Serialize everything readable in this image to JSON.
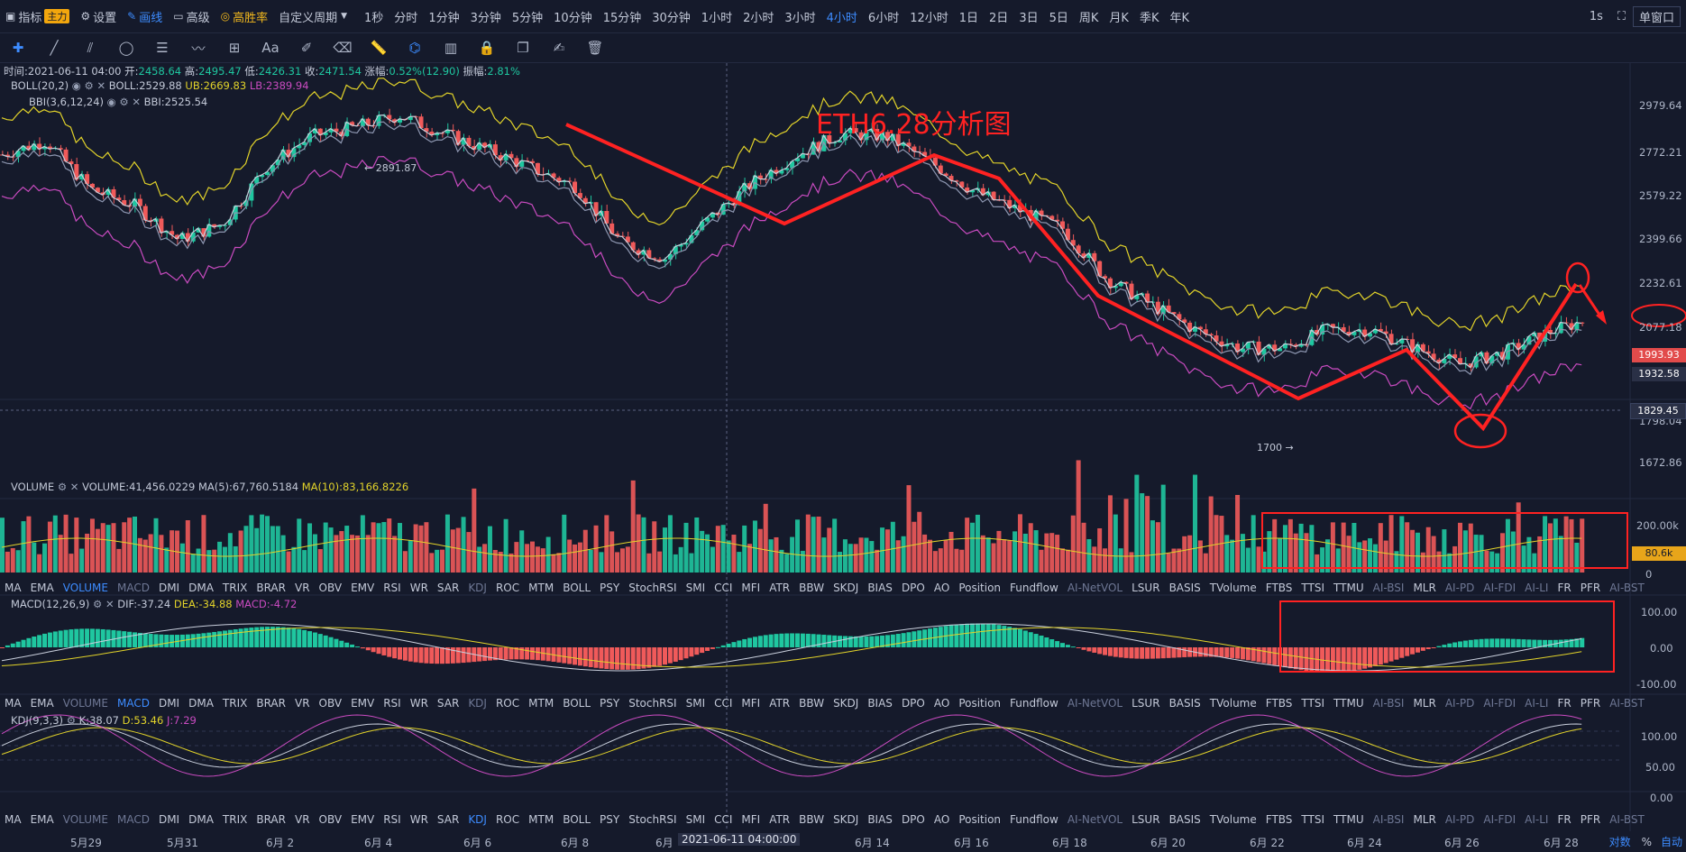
{
  "topbar": {
    "indicators": "指标",
    "main_badge": "主力",
    "settings": "设置",
    "draw": "画线",
    "advanced": "高级",
    "winrate": "高胜率",
    "custom_period": "自定义周期",
    "periods": [
      "1秒",
      "分时",
      "1分钟",
      "3分钟",
      "5分钟",
      "10分钟",
      "15分钟",
      "30分钟",
      "1小时",
      "2小时",
      "3小时",
      "4小时",
      "6小时",
      "12小时",
      "1日",
      "2日",
      "3日",
      "5日",
      "周K",
      "月K",
      "季K",
      "年K"
    ],
    "active_period": "4小时",
    "right_interval": "1s",
    "window_mode": "单窗口"
  },
  "toolbar_icons": [
    "crosshair-icon",
    "line-icon",
    "parallel-icon",
    "circle-icon",
    "fib-icon",
    "wave-icon",
    "measure-icon",
    "text-icon",
    "brush-icon",
    "eraser-icon",
    "ruler-icon",
    "magnet-icon",
    "pattern-icon",
    "lock-icon",
    "copy-icon",
    "edit-icon",
    "trash-icon"
  ],
  "candle_info": {
    "time_label": "时间:2021-06-11 04:00",
    "open_label": "开:",
    "open": "2458.64",
    "high_label": "高:",
    "high": "2495.47",
    "low_label": "低:",
    "low": "2426.31",
    "close_label": "收:",
    "close": "2471.54",
    "change_label": "涨幅:",
    "change": "0.52%(12.90)",
    "amp_label": "振幅:",
    "amp": "2.81%"
  },
  "boll": {
    "name": "BOLL(20,2)",
    "mid": "BOLL:2529.88",
    "ub": "UB:2669.83",
    "lb": "LB:2389.94"
  },
  "bbi": {
    "name": "BBI(3,6,12,24)",
    "value": "BBI:2525.54"
  },
  "annotation_title": "ETH6.28分析图",
  "high_marker": "2891.87",
  "low_marker": "1700",
  "price_axis": [
    "2979.64",
    "2772.21",
    "2579.22",
    "2399.66",
    "2232.61",
    "2077.18",
    "1798.04",
    "1672.86"
  ],
  "price_current": "1993.93",
  "price_circled": "1932.58",
  "price_crosshair": "1829.45",
  "volume": {
    "name": "VOLUME",
    "value": "VOLUME:41,456.0229",
    "ma5": "MA(5):67,760.5184",
    "ma10": "MA(10):83,166.8226",
    "axis": [
      "200.00k",
      "0"
    ],
    "current": "80.6k"
  },
  "indicator_tabs": [
    "MA",
    "EMA",
    "VOLUME",
    "MACD",
    "DMI",
    "DMA",
    "TRIX",
    "BRAR",
    "VR",
    "OBV",
    "EMV",
    "RSI",
    "WR",
    "SAR",
    "KDJ",
    "ROC",
    "MTM",
    "BOLL",
    "PSY",
    "StochRSI",
    "SMI",
    "CCI",
    "MFI",
    "ATR",
    "BBW",
    "SKDJ",
    "BIAS",
    "DPO",
    "AO",
    "Position",
    "Fundflow",
    "AI-NetVOL",
    "LSUR",
    "BASIS",
    "TVolume",
    "FTBS",
    "TTSI",
    "TTMU",
    "AI-BSI",
    "MLR",
    "AI-PD",
    "AI-FDI",
    "AI-LI",
    "FR",
    "PFR",
    "AI-BST"
  ],
  "macd": {
    "name": "MACD(12,26,9)",
    "dif": "DIF:-37.24",
    "dea": "DEA:-34.88",
    "macd": "MACD:-4.72",
    "axis": [
      "100.00",
      "0.00",
      "-100.00"
    ]
  },
  "kdj": {
    "name": "KDJ(9,3,3)",
    "k": "K:38.07",
    "d": "D:53.46",
    "j": "J:7.29",
    "axis": [
      "100.00",
      "50.00",
      "0.00"
    ]
  },
  "dates": [
    "5月29",
    "5月31",
    "6月 2",
    "6月 4",
    "6月 6",
    "6月 8",
    "6月",
    "2021-06-11 04:00:00",
    "6月 14",
    "6月 16",
    "6月 18",
    "6月 20",
    "6月 22",
    "6月 24",
    "6月 26",
    "6月 28"
  ],
  "bottom_right": {
    "log": "对数",
    "pct": "%",
    "auto": "自动"
  },
  "colors": {
    "up": "#1fc7a0",
    "down": "#f05a5a",
    "accent": "#3d8cff",
    "boll_ub": "#e2d32a",
    "boll_lb": "#c94bc0",
    "annotation": "#ff2222"
  }
}
